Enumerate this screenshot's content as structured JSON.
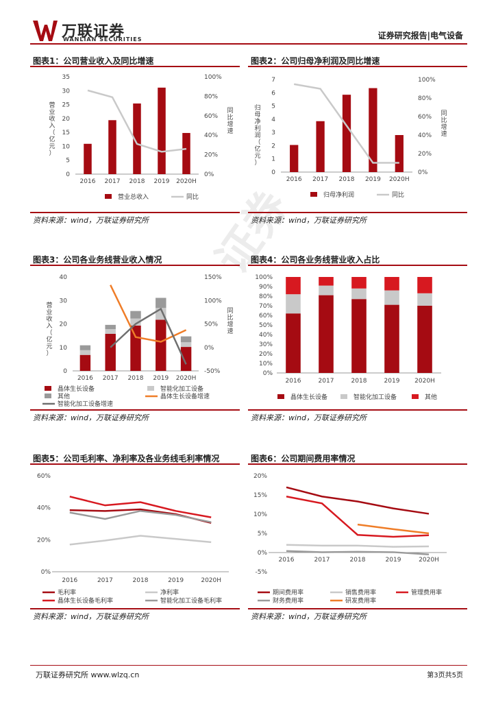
{
  "header": {
    "logo_cn": "万联证券",
    "logo_en": "WANLIAN SECURITIES",
    "report_type": "证券研究报告|电气设备"
  },
  "footer": {
    "left": "万联证券研究所 www.wlzq.cn",
    "right": "第3页共5页"
  },
  "watermark": "证券",
  "colors": {
    "dark_red": "#a50b12",
    "red": "#d71920",
    "gray": "#c9c9c9",
    "dark_gray": "#6f6f6f",
    "orange": "#ef7d28"
  },
  "figures": [
    {
      "title": "图表1：公司营业收入及同比增速",
      "source": "资料来源：wind，万联证券研究所"
    },
    {
      "title": "图表2：公司归母净利润及同比增速",
      "source": "资料来源：wind，万联证券研究所"
    },
    {
      "title": "图表3：公司各业务线营业收入情况",
      "source": "资料来源：wind，万联证券研究所"
    },
    {
      "title": "图表4：公司各业务线营业收入占比",
      "source": "资料来源：wind，万联证券研究所"
    },
    {
      "title": "图表5：公司毛利率、净利率及各业务线毛利率情况",
      "source": "资料来源：wind，万联证券研究所"
    },
    {
      "title": "图表6：公司期间费用率情况",
      "source": "资料来源：wind，万联证券研究所"
    }
  ],
  "chart_data": [
    {
      "type": "bar",
      "categories": [
        "2016",
        "2017",
        "2018",
        "2019",
        "2020H"
      ],
      "series": [
        {
          "name": "营业总收入",
          "kind": "bar",
          "axis": "left",
          "values": [
            10.9,
            19.4,
            25.4,
            31.1,
            14.8
          ]
        },
        {
          "name": "同比",
          "kind": "line",
          "axis": "right",
          "values": [
            86,
            79,
            31,
            23,
            26
          ]
        }
      ],
      "ylabel": "营业收入（亿元）",
      "y2label": "同比增速",
      "ylim": [
        0,
        35
      ],
      "yticks": [
        0,
        5,
        10,
        15,
        20,
        25,
        30,
        35
      ],
      "y2lim": [
        0,
        100
      ],
      "y2ticks": [
        "0%",
        "20%",
        "40%",
        "60%",
        "80%",
        "100%"
      ]
    },
    {
      "type": "bar",
      "categories": [
        "2016",
        "2017",
        "2018",
        "2019",
        "2020H"
      ],
      "series": [
        {
          "name": "归母净利润",
          "kind": "bar",
          "axis": "left",
          "values": [
            2.05,
            3.85,
            5.85,
            6.35,
            2.8
          ]
        },
        {
          "name": "同比",
          "kind": "line",
          "axis": "right",
          "values": [
            95,
            90,
            50,
            10,
            10
          ]
        }
      ],
      "ylabel": "归母净利润（亿元）",
      "y2label": "同比增速",
      "ylim": [
        0,
        7
      ],
      "yticks": [
        0,
        1,
        2,
        3,
        4,
        5,
        6,
        7
      ],
      "y2lim": [
        0,
        100
      ],
      "y2ticks": [
        "0%",
        "20%",
        "40%",
        "60%",
        "80%",
        "100%"
      ]
    },
    {
      "type": "bar",
      "categories": [
        "2016",
        "2017",
        "2018",
        "2019",
        "2020H"
      ],
      "series": [
        {
          "name": "晶体生长设备",
          "kind": "stack",
          "values": [
            6.8,
            15.8,
            19.3,
            21.8,
            10.2
          ]
        },
        {
          "name": "智能化加工设备",
          "kind": "stack",
          "values": [
            2.0,
            2.0,
            3.0,
            5.0,
            2.0
          ]
        },
        {
          "name": "其他",
          "kind": "stack",
          "values": [
            2.1,
            1.8,
            3.2,
            4.3,
            2.5
          ]
        },
        {
          "name": "晶体生长设备增速",
          "kind": "line",
          "axis": "right",
          "values": [
            null,
            133,
            22,
            12,
            37
          ]
        },
        {
          "name": "智能化加工设备增速",
          "kind": "line",
          "axis": "right",
          "values": [
            null,
            0,
            50,
            82,
            -36
          ]
        }
      ],
      "ylabel": "营业收入（亿元）",
      "y2label": "同比增速",
      "ylim": [
        0,
        40
      ],
      "yticks": [
        0,
        10,
        20,
        30,
        40
      ],
      "y2lim": [
        -50,
        150
      ],
      "y2ticks": [
        "-50%",
        "0%",
        "50%",
        "100%",
        "150%"
      ]
    },
    {
      "type": "bar",
      "categories": [
        "2016",
        "2017",
        "2018",
        "2019",
        "2020H"
      ],
      "series": [
        {
          "name": "晶体生长设备",
          "values": [
            62,
            81,
            77,
            71,
            70
          ]
        },
        {
          "name": "智能化加工设备",
          "values": [
            20,
            10,
            11,
            15,
            13
          ]
        },
        {
          "name": "其他",
          "values": [
            18,
            9,
            12,
            14,
            17
          ]
        }
      ],
      "ylim": [
        0,
        100
      ],
      "yticks": [
        "0%",
        "10%",
        "20%",
        "30%",
        "40%",
        "50%",
        "60%",
        "70%",
        "80%",
        "90%",
        "100%"
      ]
    },
    {
      "type": "line",
      "categories": [
        "2016",
        "2017",
        "2018",
        "2019",
        "2020H"
      ],
      "series": [
        {
          "name": "毛利率",
          "values": [
            38.5,
            38,
            39,
            36,
            30.5
          ]
        },
        {
          "name": "净利率",
          "values": [
            17,
            19.5,
            22.5,
            20.5,
            18.5
          ]
        },
        {
          "name": "晶体生长设备毛利率",
          "values": [
            47,
            41.5,
            43.5,
            38,
            34
          ]
        },
        {
          "name": "智能化加工设备毛利率",
          "values": [
            37,
            33,
            38,
            35.5,
            31
          ]
        }
      ],
      "ylim": [
        0,
        60
      ],
      "yticks": [
        "0%",
        "20%",
        "40%",
        "60%"
      ]
    },
    {
      "type": "line",
      "categories": [
        "2016",
        "2017",
        "2018",
        "2019",
        "2020H"
      ],
      "series": [
        {
          "name": "期间费用率",
          "values": [
            17,
            14.6,
            13.3,
            11.5,
            10.1
          ]
        },
        {
          "name": "销售费用率",
          "values": [
            2.0,
            1.8,
            1.8,
            1.5,
            1.6
          ]
        },
        {
          "name": "管理费用率",
          "values": [
            14.6,
            12.8,
            4.6,
            4.1,
            4.5
          ]
        },
        {
          "name": "财务费用率",
          "values": [
            0.4,
            0.1,
            0.2,
            0.1,
            -0.5
          ]
        },
        {
          "name": "研发费用率",
          "values": [
            null,
            null,
            7.3,
            6.1,
            5.0
          ]
        }
      ],
      "ylim": [
        -5,
        20
      ],
      "yticks": [
        "-5%",
        "0%",
        "5%",
        "10%",
        "15%",
        "20%"
      ]
    }
  ]
}
